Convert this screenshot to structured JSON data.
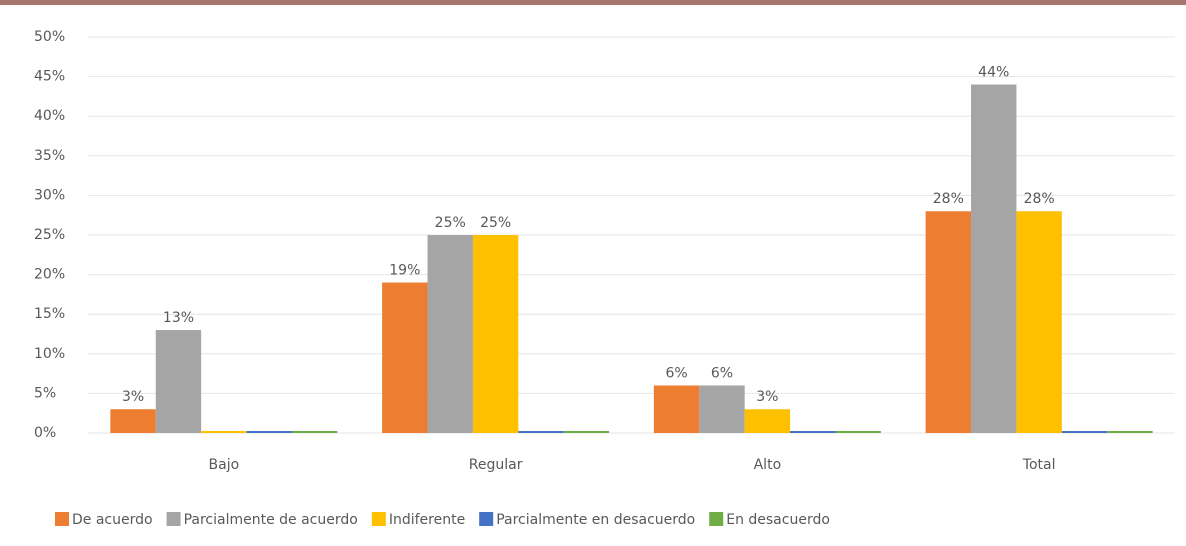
{
  "chart_data": {
    "type": "bar",
    "categories": [
      "Bajo",
      "Regular",
      "Alto",
      "Total"
    ],
    "series": [
      {
        "name": "De acuerdo",
        "color": "#ed7d31",
        "values": [
          3,
          19,
          6,
          28
        ],
        "value_labels": [
          "3%",
          "19%",
          "6%",
          "28%"
        ]
      },
      {
        "name": "Parcialmente de acuerdo",
        "color": "#a5a5a5",
        "values": [
          13,
          25,
          6,
          44
        ],
        "value_labels": [
          "13%",
          "25%",
          "6%",
          "44%"
        ]
      },
      {
        "name": "Indiferente",
        "color": "#ffc000",
        "values": [
          0,
          25,
          3,
          28
        ],
        "value_labels": [
          null,
          "25%",
          "3%",
          "28%"
        ]
      },
      {
        "name": "Parcialmente en desacuerdo",
        "color": "#4472c4",
        "values": [
          0,
          0,
          0,
          0
        ],
        "value_labels": [
          null,
          null,
          null,
          null
        ]
      },
      {
        "name": "En desacuerdo",
        "color": "#70ad47",
        "values": [
          0,
          0,
          0,
          0
        ],
        "value_labels": [
          null,
          null,
          null,
          null
        ]
      }
    ],
    "ylim": [
      0,
      50
    ],
    "yticks": [
      {
        "value": 0,
        "label": "0%"
      },
      {
        "value": 5,
        "label": "5%"
      },
      {
        "value": 10,
        "label": "10%"
      },
      {
        "value": 15,
        "label": "15%"
      },
      {
        "value": 20,
        "label": "20%"
      },
      {
        "value": 25,
        "label": "25%"
      },
      {
        "value": 30,
        "label": "30%"
      },
      {
        "value": 35,
        "label": "35%"
      },
      {
        "value": 40,
        "label": "40%"
      },
      {
        "value": 45,
        "label": "45%"
      },
      {
        "value": 50,
        "label": "50%"
      }
    ],
    "grid": true,
    "legend": "bottom"
  }
}
